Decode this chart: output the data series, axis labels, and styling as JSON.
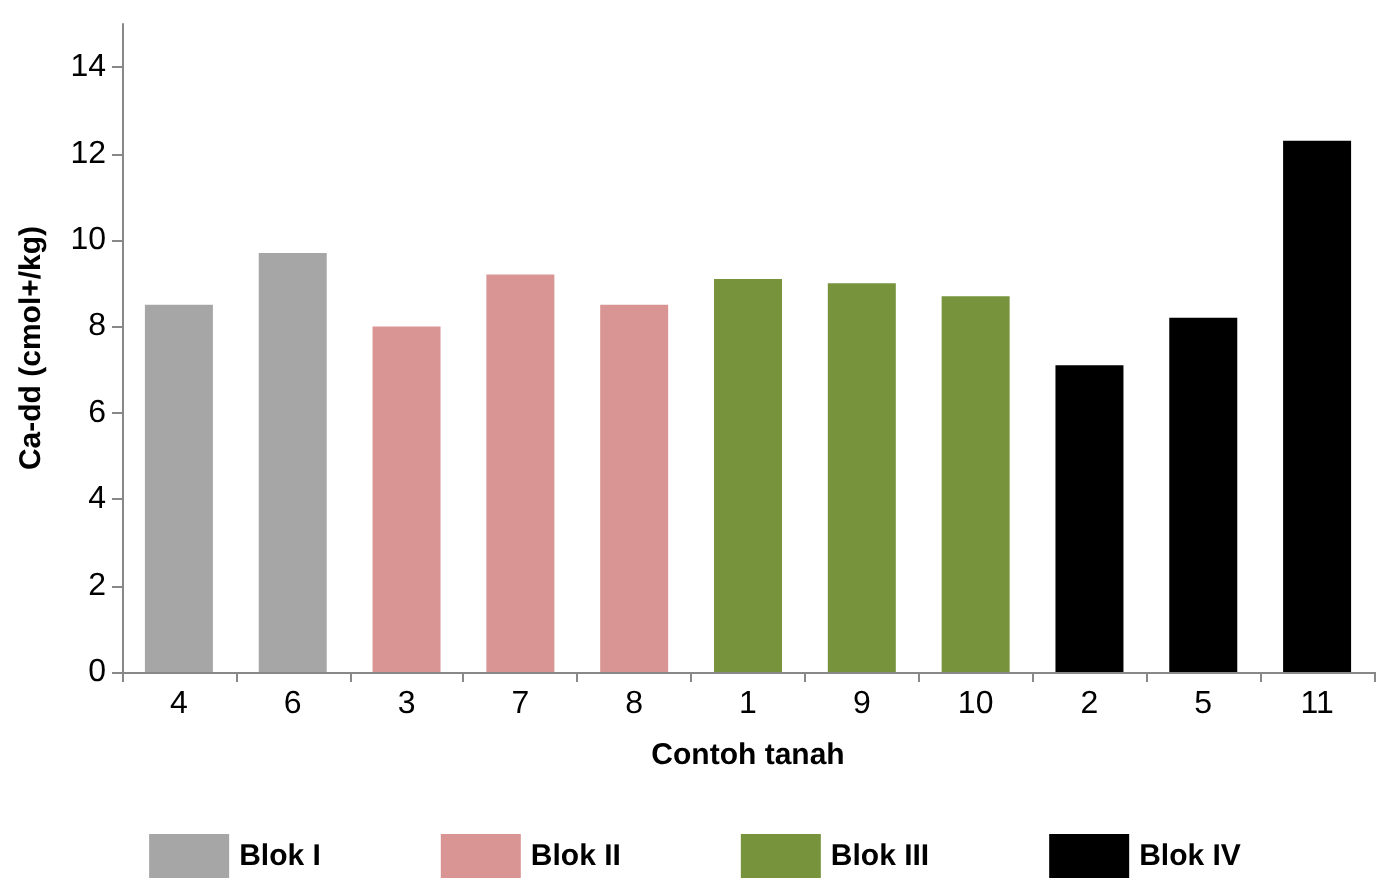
{
  "chart_data": {
    "type": "bar",
    "xlabel": "Contoh tanah",
    "ylabel": "Ca-dd (cmol+/kg)",
    "categories": [
      "4",
      "6",
      "3",
      "7",
      "8",
      "1",
      "9",
      "10",
      "2",
      "5",
      "11"
    ],
    "series": [
      {
        "name": "Blok I",
        "color": "#a6a6a6",
        "values": [
          8.5,
          9.7,
          null,
          null,
          null,
          null,
          null,
          null,
          null,
          null,
          null
        ]
      },
      {
        "name": "Blok II",
        "color": "#d99594",
        "values": [
          null,
          null,
          8.0,
          9.2,
          8.5,
          null,
          null,
          null,
          null,
          null,
          null
        ]
      },
      {
        "name": "Blok III",
        "color": "#77933c",
        "values": [
          null,
          null,
          null,
          null,
          null,
          9.1,
          9.0,
          8.7,
          null,
          null,
          null
        ]
      },
      {
        "name": "Blok IV",
        "color": "#000000",
        "values": [
          null,
          null,
          null,
          null,
          null,
          null,
          null,
          null,
          7.1,
          8.2,
          12.3
        ]
      }
    ],
    "ylim": [
      0,
      15
    ],
    "yticks": [
      0,
      2,
      4,
      6,
      8,
      10,
      12,
      14
    ],
    "grid": false,
    "legend": "bottom"
  }
}
